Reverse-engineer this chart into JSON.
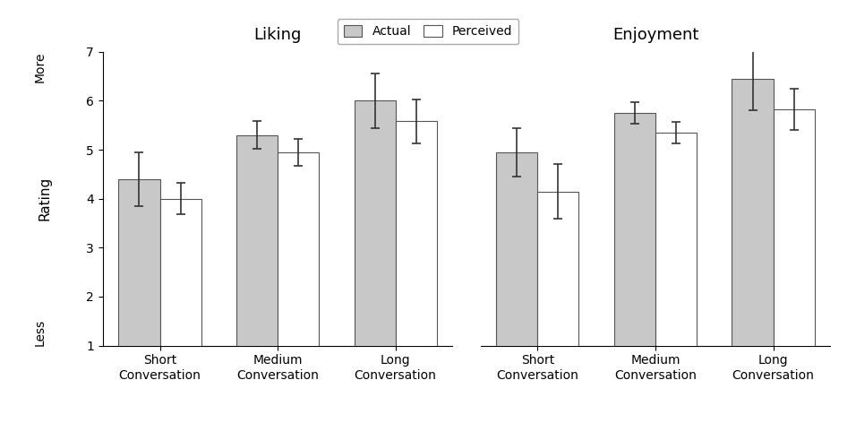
{
  "subplots": [
    {
      "title": "Liking",
      "categories": [
        "Short\nConversation",
        "Medium\nConversation",
        "Long\nConversation"
      ],
      "actual_values": [
        4.4,
        5.3,
        6.0
      ],
      "perceived_values": [
        4.0,
        4.95,
        5.58
      ],
      "actual_errors": [
        0.55,
        0.28,
        0.55
      ],
      "perceived_errors": [
        0.32,
        0.28,
        0.45
      ]
    },
    {
      "title": "Enjoyment",
      "categories": [
        "Short\nConversation",
        "Medium\nConversation",
        "Long\nConversation"
      ],
      "actual_values": [
        4.95,
        5.75,
        6.45
      ],
      "perceived_values": [
        4.15,
        5.35,
        5.82
      ],
      "actual_errors": [
        0.5,
        0.22,
        0.65
      ],
      "perceived_errors": [
        0.55,
        0.22,
        0.42
      ]
    }
  ],
  "actual_color": "#c8c8c8",
  "perceived_color": "#ffffff",
  "bar_edge_color": "#555555",
  "error_color": "#333333",
  "bar_width": 0.35,
  "ylim": [
    1,
    7
  ],
  "yticks": [
    1,
    2,
    3,
    4,
    5,
    6,
    7
  ],
  "ylabel": "Rating",
  "label_more": "More",
  "label_less": "Less",
  "legend_labels": [
    "Actual",
    "Perceived"
  ],
  "title_fontsize": 13,
  "label_fontsize": 10,
  "tick_fontsize": 10,
  "legend_fontsize": 10
}
